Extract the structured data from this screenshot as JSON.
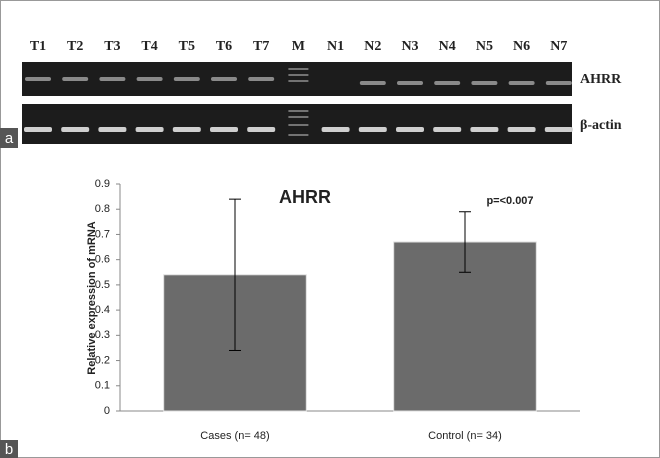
{
  "gel": {
    "panel_label": "a",
    "lanes": [
      "T1",
      "T2",
      "T3",
      "T4",
      "T5",
      "T6",
      "T7",
      "M",
      "N1",
      "N2",
      "N3",
      "N4",
      "N5",
      "N6",
      "N7"
    ],
    "rows": [
      "AHRR",
      "β-actin"
    ]
  },
  "chart_data": {
    "type": "bar",
    "panel_label": "b",
    "title": "AHRR",
    "y_label": "Relative expression of mRNA",
    "categories": [
      "Cases (n= 48)",
      "Control (n= 34)"
    ],
    "values": [
      0.54,
      0.67
    ],
    "errors": [
      0.3,
      0.12
    ],
    "color": "#6b6b6b",
    "annotation": "p=<0.007",
    "ylim": [
      0,
      0.9
    ],
    "yticks": [
      0,
      0.1,
      0.2,
      0.3,
      0.4,
      0.5,
      0.6,
      0.7,
      0.8,
      0.9
    ],
    "grid": false
  }
}
